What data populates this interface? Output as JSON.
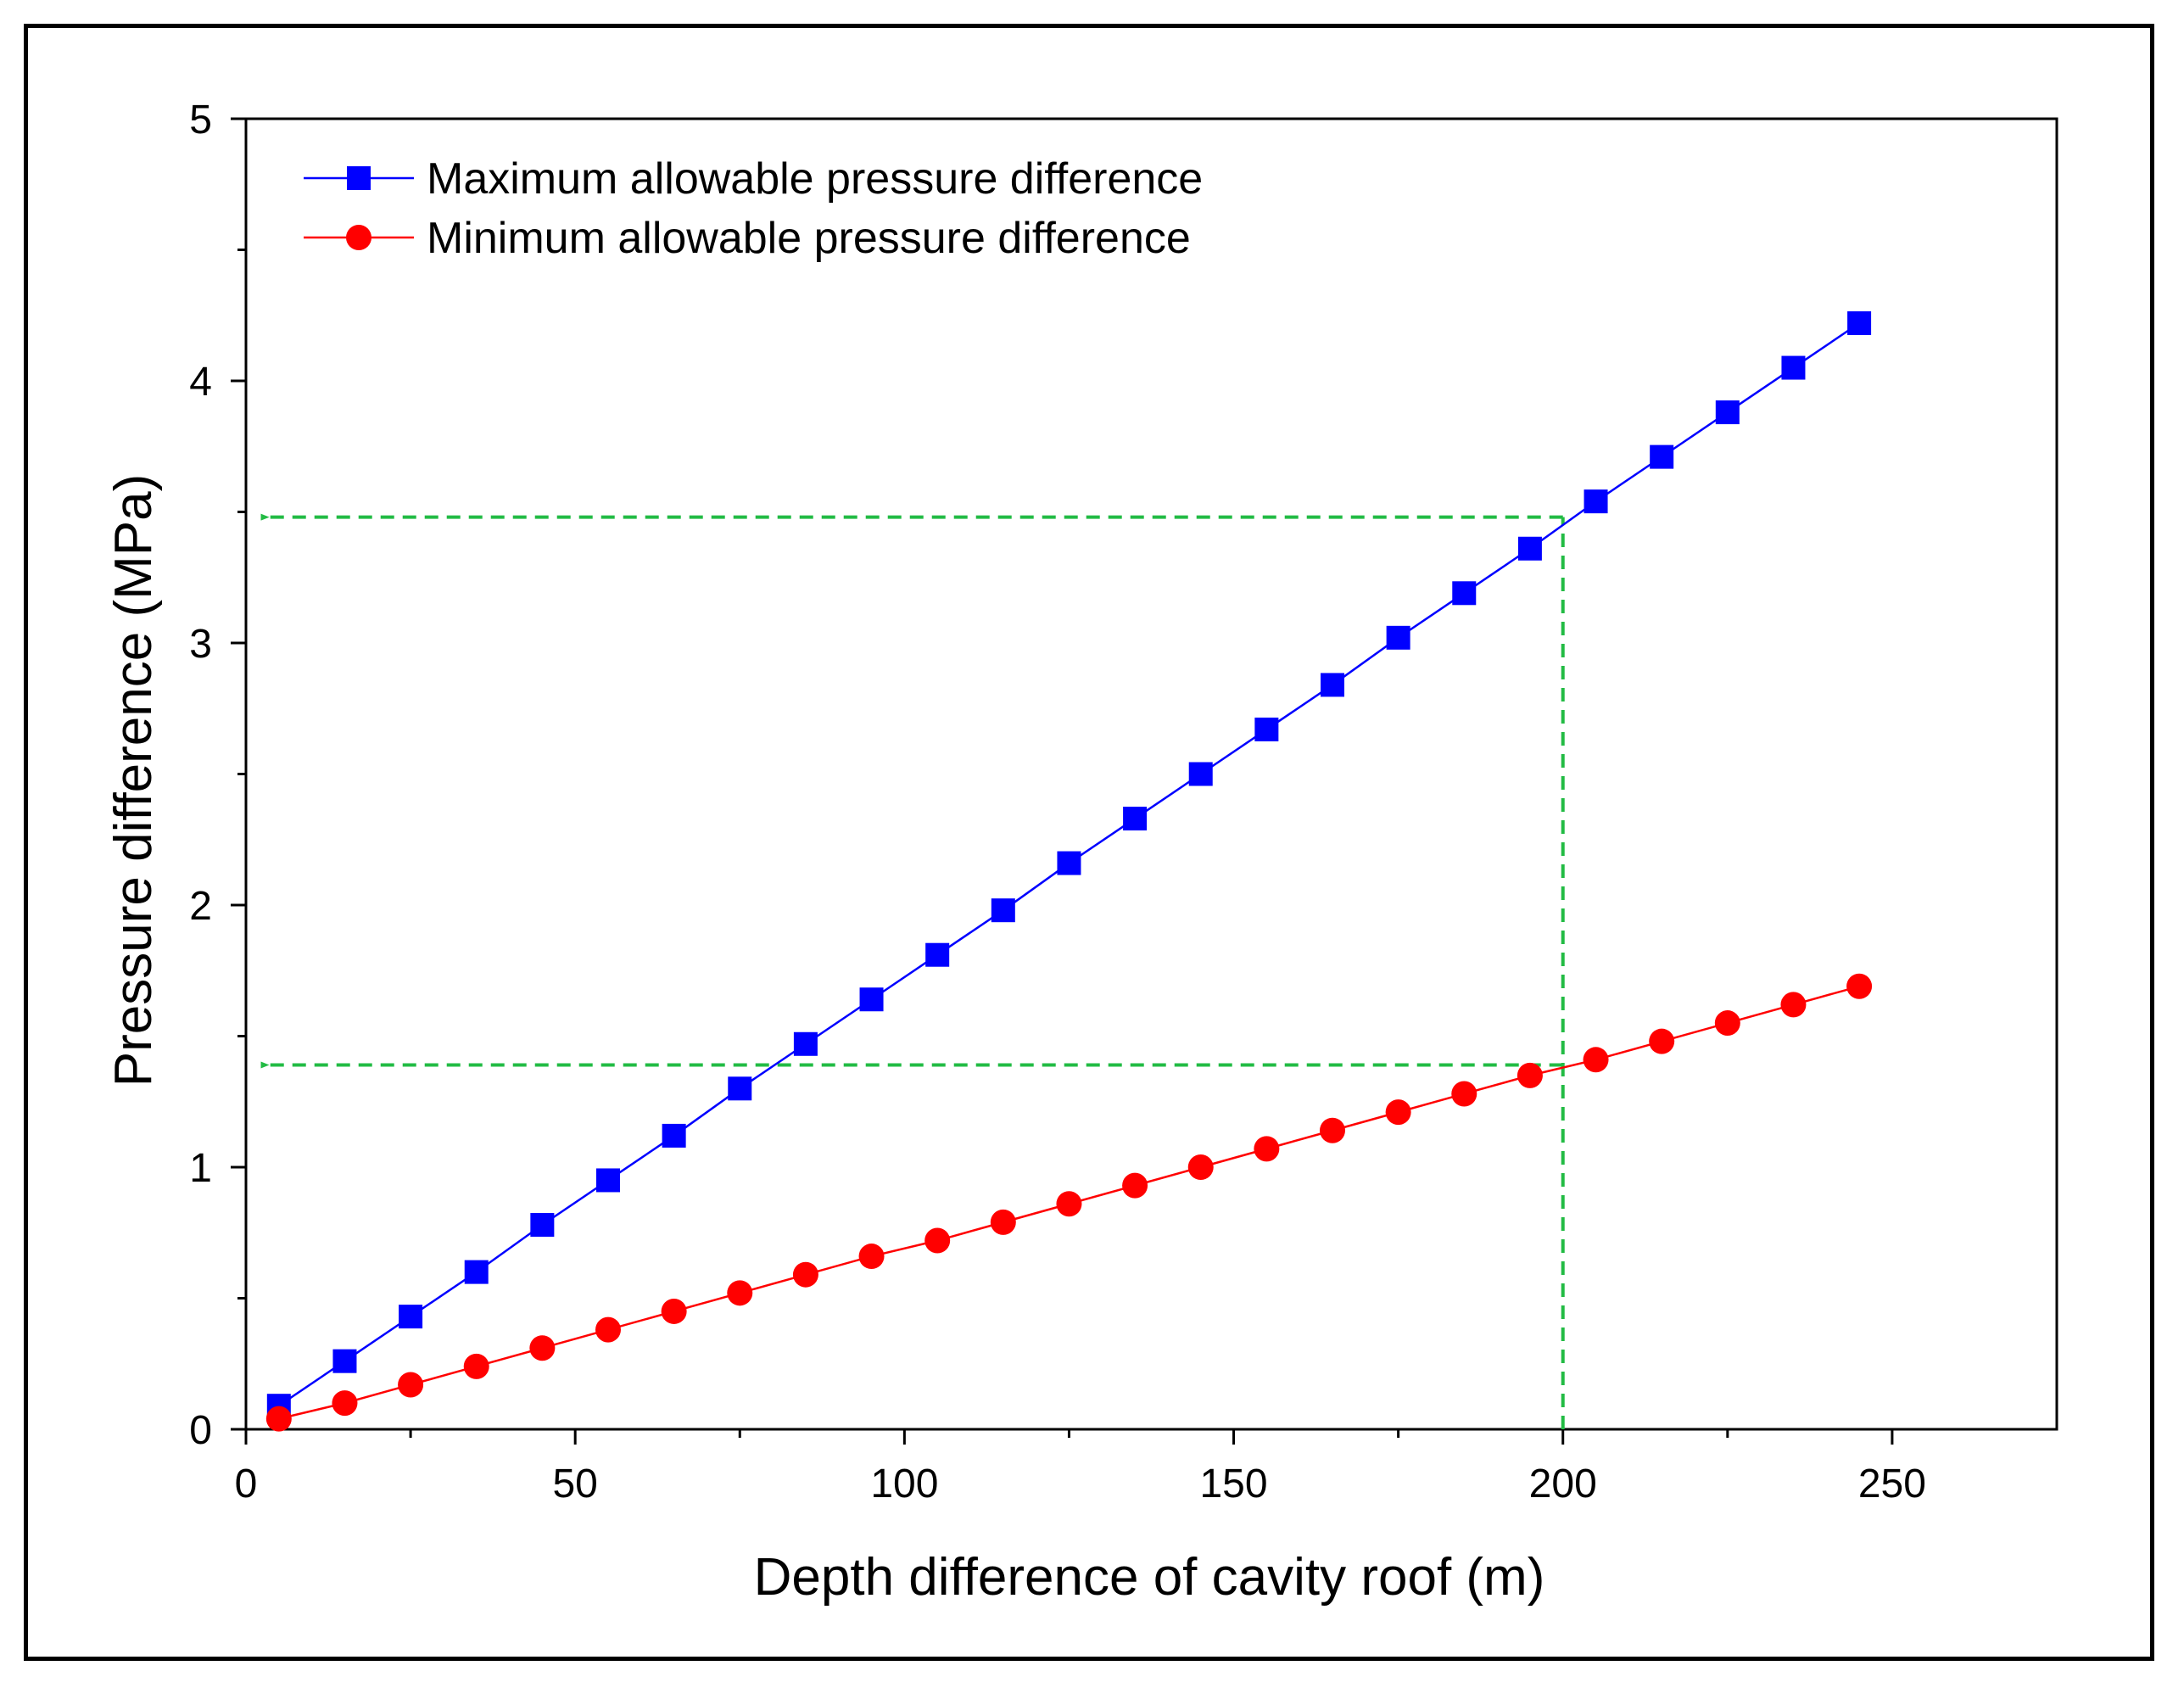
{
  "chart_data": {
    "type": "line",
    "title": "",
    "xlabel": "Depth difference of cavity roof (m)",
    "ylabel": "Pressure difference (MPa)",
    "xlim": [
      0,
      275
    ],
    "ylim": [
      0,
      5
    ],
    "x_ticks": [
      0,
      50,
      100,
      150,
      200,
      250
    ],
    "x_tick_labels": [
      "0",
      "50",
      "100",
      "150",
      "200",
      "250"
    ],
    "y_ticks": [
      0,
      1,
      2,
      3,
      4,
      5
    ],
    "y_tick_labels": [
      "0",
      "1",
      "2",
      "3",
      "4",
      "5"
    ],
    "grid": false,
    "legend_position": "top-left",
    "x": [
      5,
      15,
      25,
      35,
      45,
      55,
      65,
      75,
      85,
      95,
      105,
      115,
      125,
      135,
      145,
      155,
      165,
      175,
      185,
      195,
      205,
      215,
      225,
      235,
      245
    ],
    "series": [
      {
        "name": "Maximum allowable pressure difference",
        "color": "#0000ff",
        "marker": "square",
        "values": [
          0.09,
          0.26,
          0.43,
          0.6,
          0.78,
          0.95,
          1.12,
          1.3,
          1.47,
          1.64,
          1.81,
          1.98,
          2.16,
          2.33,
          2.5,
          2.67,
          2.84,
          3.02,
          3.19,
          3.36,
          3.54,
          3.71,
          3.88,
          4.05,
          4.22
        ]
      },
      {
        "name": "Minimum allowable pressure difference",
        "color": "#ff0000",
        "marker": "circle",
        "values": [
          0.04,
          0.1,
          0.17,
          0.24,
          0.31,
          0.38,
          0.45,
          0.52,
          0.59,
          0.66,
          0.72,
          0.79,
          0.86,
          0.93,
          1.0,
          1.07,
          1.14,
          1.21,
          1.28,
          1.35,
          1.41,
          1.48,
          1.55,
          1.62,
          1.69
        ]
      }
    ],
    "annotations": [
      {
        "type": "vertical-dashed",
        "x": 200,
        "y_from": 0,
        "y_to": 3.48,
        "color": "#22bb44"
      },
      {
        "type": "arrow-dashed-left",
        "y": 3.48,
        "x_from": 200,
        "x_to": 2,
        "color": "#22bb44"
      },
      {
        "type": "arrow-dashed-left",
        "y": 1.39,
        "x_from": 200,
        "x_to": 2,
        "color": "#22bb44"
      }
    ]
  }
}
